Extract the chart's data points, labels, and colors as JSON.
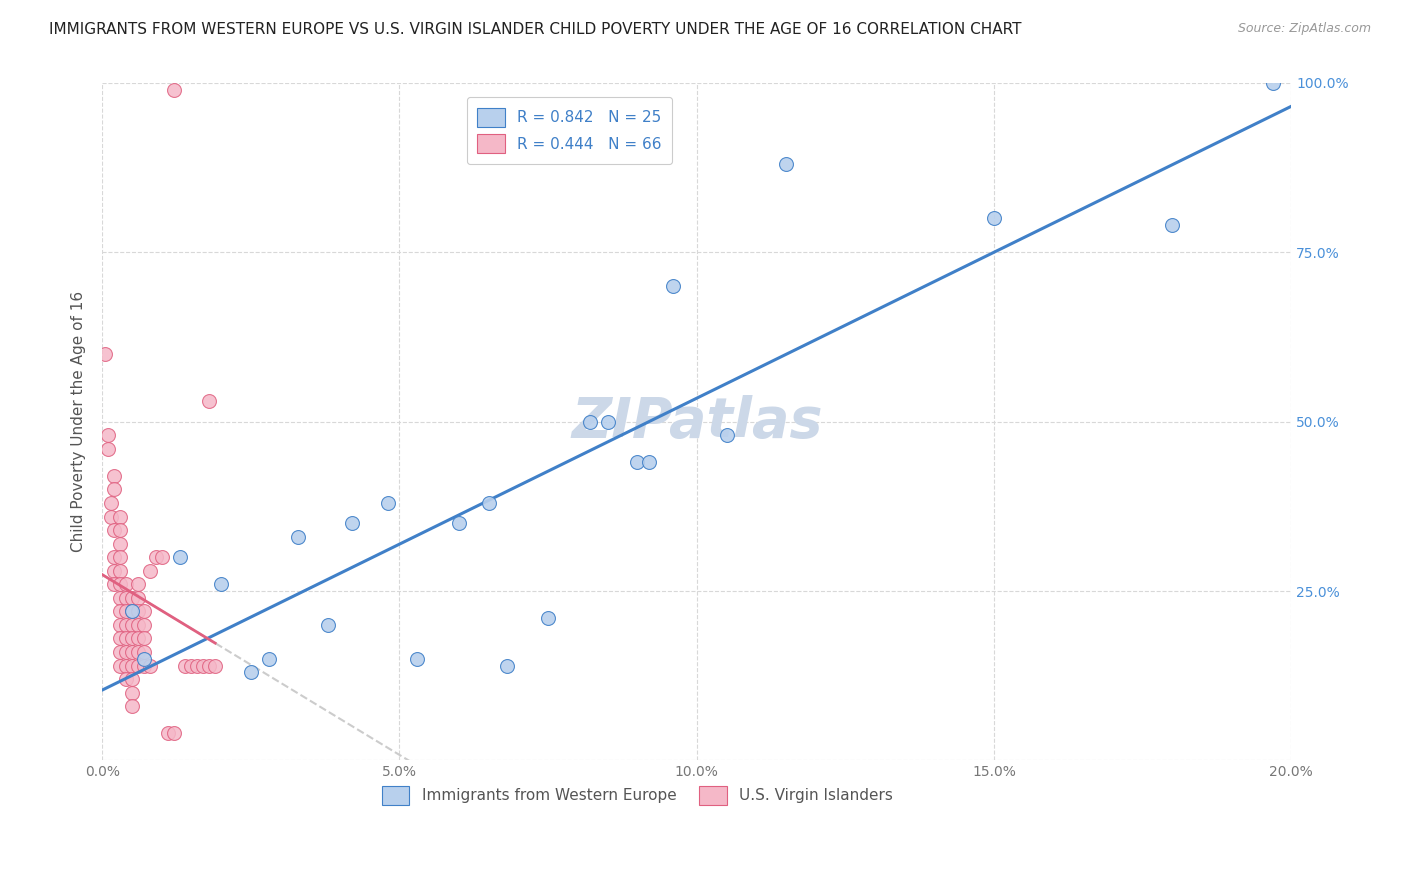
{
  "title": "IMMIGRANTS FROM WESTERN EUROPE VS U.S. VIRGIN ISLANDER CHILD POVERTY UNDER THE AGE OF 16 CORRELATION CHART",
  "source": "Source: ZipAtlas.com",
  "ylabel": "Child Poverty Under the Age of 16",
  "xlabel_blue": "Immigrants from Western Europe",
  "xlabel_pink": "U.S. Virgin Islanders",
  "watermark": "ZIPatlas",
  "R_blue": 0.842,
  "N_blue": 25,
  "R_pink": 0.444,
  "N_pink": 66,
  "blue_color": "#b8d0ed",
  "pink_color": "#f5b8c8",
  "blue_line_color": "#4080c8",
  "pink_line_color": "#e06080",
  "gray_dash_color": "#cccccc",
  "blue_scatter": [
    [
      0.005,
      0.22
    ],
    [
      0.007,
      0.15
    ],
    [
      0.013,
      0.3
    ],
    [
      0.02,
      0.26
    ],
    [
      0.025,
      0.13
    ],
    [
      0.028,
      0.15
    ],
    [
      0.033,
      0.33
    ],
    [
      0.038,
      0.2
    ],
    [
      0.042,
      0.35
    ],
    [
      0.048,
      0.38
    ],
    [
      0.053,
      0.15
    ],
    [
      0.06,
      0.35
    ],
    [
      0.065,
      0.38
    ],
    [
      0.068,
      0.14
    ],
    [
      0.075,
      0.21
    ],
    [
      0.082,
      0.5
    ],
    [
      0.085,
      0.5
    ],
    [
      0.09,
      0.44
    ],
    [
      0.092,
      0.44
    ],
    [
      0.096,
      0.7
    ],
    [
      0.105,
      0.48
    ],
    [
      0.115,
      0.88
    ],
    [
      0.15,
      0.8
    ],
    [
      0.18,
      0.79
    ],
    [
      0.197,
      1.0
    ]
  ],
  "pink_scatter": [
    [
      0.0005,
      0.6
    ],
    [
      0.001,
      0.48
    ],
    [
      0.001,
      0.46
    ],
    [
      0.0015,
      0.38
    ],
    [
      0.0015,
      0.36
    ],
    [
      0.002,
      0.34
    ],
    [
      0.002,
      0.42
    ],
    [
      0.002,
      0.4
    ],
    [
      0.002,
      0.3
    ],
    [
      0.002,
      0.28
    ],
    [
      0.002,
      0.26
    ],
    [
      0.003,
      0.36
    ],
    [
      0.003,
      0.34
    ],
    [
      0.003,
      0.32
    ],
    [
      0.003,
      0.3
    ],
    [
      0.003,
      0.28
    ],
    [
      0.003,
      0.26
    ],
    [
      0.003,
      0.24
    ],
    [
      0.003,
      0.22
    ],
    [
      0.003,
      0.2
    ],
    [
      0.003,
      0.18
    ],
    [
      0.003,
      0.16
    ],
    [
      0.003,
      0.14
    ],
    [
      0.004,
      0.26
    ],
    [
      0.004,
      0.24
    ],
    [
      0.004,
      0.22
    ],
    [
      0.004,
      0.2
    ],
    [
      0.004,
      0.18
    ],
    [
      0.004,
      0.16
    ],
    [
      0.004,
      0.14
    ],
    [
      0.004,
      0.12
    ],
    [
      0.005,
      0.24
    ],
    [
      0.005,
      0.22
    ],
    [
      0.005,
      0.2
    ],
    [
      0.005,
      0.18
    ],
    [
      0.005,
      0.16
    ],
    [
      0.005,
      0.14
    ],
    [
      0.005,
      0.12
    ],
    [
      0.005,
      0.1
    ],
    [
      0.005,
      0.08
    ],
    [
      0.006,
      0.26
    ],
    [
      0.006,
      0.24
    ],
    [
      0.006,
      0.22
    ],
    [
      0.006,
      0.2
    ],
    [
      0.006,
      0.18
    ],
    [
      0.006,
      0.16
    ],
    [
      0.006,
      0.14
    ],
    [
      0.007,
      0.22
    ],
    [
      0.007,
      0.2
    ],
    [
      0.007,
      0.18
    ],
    [
      0.007,
      0.16
    ],
    [
      0.007,
      0.14
    ],
    [
      0.008,
      0.28
    ],
    [
      0.008,
      0.14
    ],
    [
      0.009,
      0.3
    ],
    [
      0.01,
      0.3
    ],
    [
      0.011,
      0.04
    ],
    [
      0.012,
      0.04
    ],
    [
      0.014,
      0.14
    ],
    [
      0.015,
      0.14
    ],
    [
      0.016,
      0.14
    ],
    [
      0.017,
      0.14
    ],
    [
      0.018,
      0.14
    ],
    [
      0.019,
      0.14
    ],
    [
      0.012,
      0.99
    ],
    [
      0.018,
      0.53
    ]
  ],
  "xlim": [
    0.0,
    0.2
  ],
  "ylim": [
    0.0,
    1.0
  ],
  "xticks": [
    0.0,
    0.05,
    0.1,
    0.15,
    0.2
  ],
  "yticks": [
    0.0,
    0.25,
    0.5,
    0.75,
    1.0
  ],
  "xtick_labels": [
    "0.0%",
    "5.0%",
    "10.0%",
    "15.0%",
    "20.0%"
  ],
  "ytick_labels_right": [
    "",
    "25.0%",
    "50.0%",
    "75.0%",
    "100.0%"
  ],
  "grid_color": "#d8d8d8",
  "background_color": "#ffffff",
  "title_fontsize": 11,
  "axis_label_fontsize": 11,
  "tick_fontsize": 10,
  "legend_fontsize": 11,
  "source_fontsize": 9,
  "watermark_fontsize": 40,
  "watermark_color": "#ccd8e8",
  "right_yaxis_color": "#4a90d9"
}
